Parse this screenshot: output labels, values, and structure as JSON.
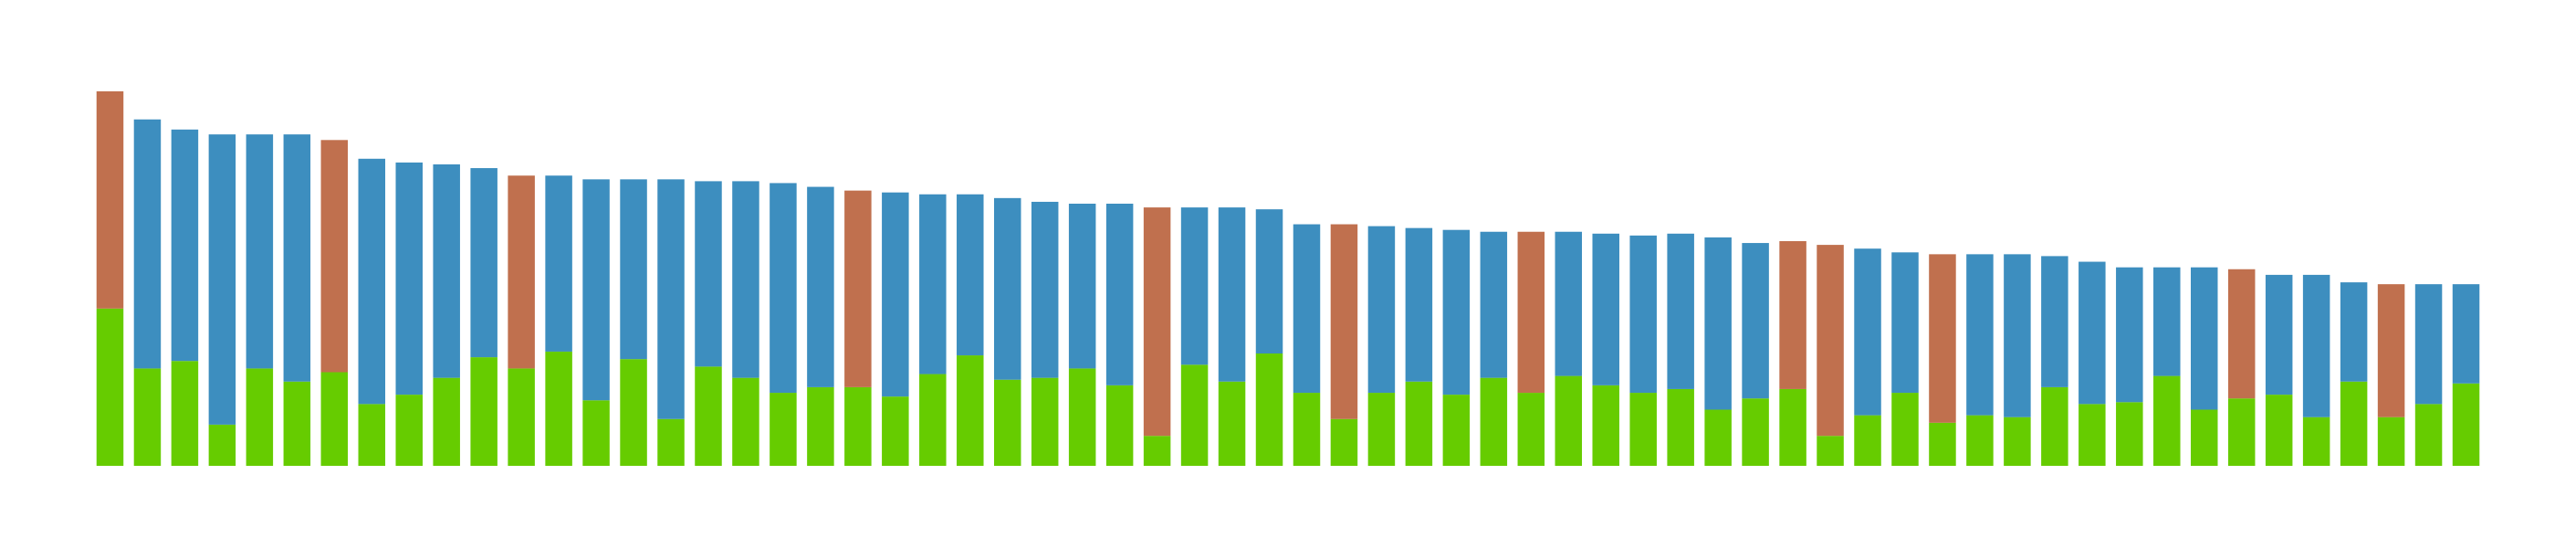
{
  "chart_data": {
    "type": "bar",
    "stacked": true,
    "title": "",
    "xlabel": "",
    "ylabel": "",
    "ylim": [
      0,
      100
    ],
    "grid": false,
    "legend": "none",
    "colors": {
      "base": "#66cc00",
      "top_default": "#3d8ebf",
      "top_highlight": "#c0704e"
    },
    "bars": [
      {
        "base": 42.0,
        "top": 58.0,
        "highlight": true
      },
      {
        "base": 26.0,
        "top": 66.5,
        "highlight": false
      },
      {
        "base": 28.0,
        "top": 61.8,
        "highlight": false
      },
      {
        "base": 11.0,
        "top": 77.5,
        "highlight": false
      },
      {
        "base": 26.0,
        "top": 62.5,
        "highlight": false
      },
      {
        "base": 22.5,
        "top": 66.0,
        "highlight": false
      },
      {
        "base": 25.0,
        "top": 62.0,
        "highlight": true
      },
      {
        "base": 16.5,
        "top": 65.5,
        "highlight": false
      },
      {
        "base": 19.0,
        "top": 62.0,
        "highlight": false
      },
      {
        "base": 23.5,
        "top": 57.0,
        "highlight": false
      },
      {
        "base": 29.0,
        "top": 50.5,
        "highlight": false
      },
      {
        "base": 26.0,
        "top": 51.5,
        "highlight": true
      },
      {
        "base": 30.5,
        "top": 47.0,
        "highlight": false
      },
      {
        "base": 17.5,
        "top": 59.0,
        "highlight": false
      },
      {
        "base": 28.5,
        "top": 48.0,
        "highlight": false
      },
      {
        "base": 12.5,
        "top": 64.0,
        "highlight": false
      },
      {
        "base": 26.5,
        "top": 49.5,
        "highlight": false
      },
      {
        "base": 23.5,
        "top": 52.5,
        "highlight": false
      },
      {
        "base": 19.5,
        "top": 56.0,
        "highlight": false
      },
      {
        "base": 21.0,
        "top": 53.5,
        "highlight": false
      },
      {
        "base": 21.0,
        "top": 52.5,
        "highlight": true
      },
      {
        "base": 18.5,
        "top": 54.5,
        "highlight": false
      },
      {
        "base": 24.5,
        "top": 48.0,
        "highlight": false
      },
      {
        "base": 29.5,
        "top": 43.0,
        "highlight": false
      },
      {
        "base": 23.0,
        "top": 48.5,
        "highlight": false
      },
      {
        "base": 23.5,
        "top": 47.0,
        "highlight": false
      },
      {
        "base": 26.0,
        "top": 44.0,
        "highlight": false
      },
      {
        "base": 21.5,
        "top": 48.5,
        "highlight": false
      },
      {
        "base": 8.0,
        "top": 61.0,
        "highlight": true
      },
      {
        "base": 27.0,
        "top": 42.0,
        "highlight": false
      },
      {
        "base": 22.5,
        "top": 46.5,
        "highlight": false
      },
      {
        "base": 30.0,
        "top": 38.5,
        "highlight": false
      },
      {
        "base": 19.5,
        "top": 45.0,
        "highlight": false
      },
      {
        "base": 12.5,
        "top": 52.0,
        "highlight": true
      },
      {
        "base": 19.5,
        "top": 44.5,
        "highlight": false
      },
      {
        "base": 22.5,
        "top": 41.0,
        "highlight": false
      },
      {
        "base": 19.0,
        "top": 44.0,
        "highlight": false
      },
      {
        "base": 23.5,
        "top": 39.0,
        "highlight": false
      },
      {
        "base": 19.5,
        "top": 43.0,
        "highlight": true
      },
      {
        "base": 24.0,
        "top": 38.5,
        "highlight": false
      },
      {
        "base": 21.5,
        "top": 40.5,
        "highlight": false
      },
      {
        "base": 19.5,
        "top": 42.0,
        "highlight": false
      },
      {
        "base": 20.5,
        "top": 41.5,
        "highlight": false
      },
      {
        "base": 15.0,
        "top": 46.0,
        "highlight": false
      },
      {
        "base": 18.0,
        "top": 41.5,
        "highlight": false
      },
      {
        "base": 20.5,
        "top": 39.5,
        "highlight": true
      },
      {
        "base": 8.0,
        "top": 51.0,
        "highlight": true
      },
      {
        "base": 13.5,
        "top": 44.5,
        "highlight": false
      },
      {
        "base": 19.5,
        "top": 37.5,
        "highlight": false
      },
      {
        "base": 11.5,
        "top": 45.0,
        "highlight": true
      },
      {
        "base": 13.5,
        "top": 43.0,
        "highlight": false
      },
      {
        "base": 13.0,
        "top": 43.5,
        "highlight": false
      },
      {
        "base": 21.0,
        "top": 35.0,
        "highlight": false
      },
      {
        "base": 16.5,
        "top": 38.0,
        "highlight": false
      },
      {
        "base": 17.0,
        "top": 36.0,
        "highlight": false
      },
      {
        "base": 24.0,
        "top": 29.0,
        "highlight": false
      },
      {
        "base": 15.0,
        "top": 38.0,
        "highlight": false
      },
      {
        "base": 18.0,
        "top": 34.5,
        "highlight": true
      },
      {
        "base": 19.0,
        "top": 32.0,
        "highlight": false
      },
      {
        "base": 13.0,
        "top": 38.0,
        "highlight": false
      },
      {
        "base": 22.5,
        "top": 26.5,
        "highlight": false
      },
      {
        "base": 13.0,
        "top": 35.5,
        "highlight": true
      },
      {
        "base": 16.5,
        "top": 32.0,
        "highlight": false
      },
      {
        "base": 22.0,
        "top": 26.5,
        "highlight": false
      }
    ]
  }
}
